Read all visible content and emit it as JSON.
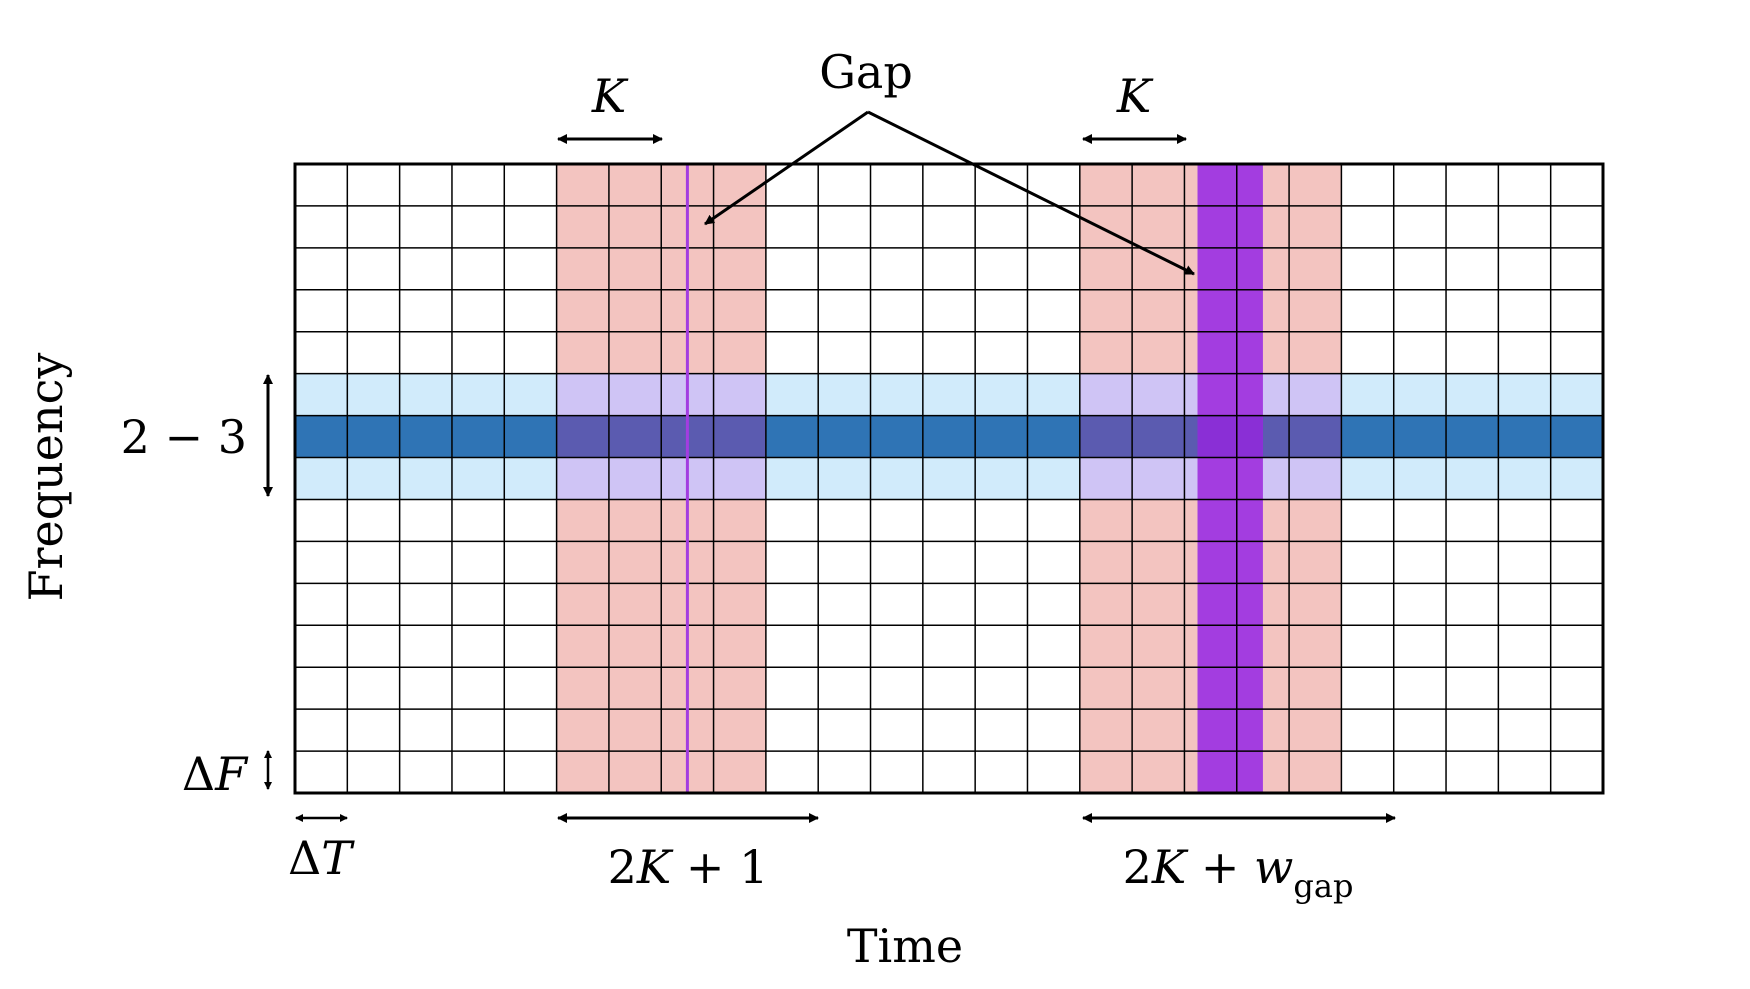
{
  "labels": {
    "gap": "Gap",
    "k_left": "K",
    "k_right": "K",
    "frequency_axis": "Frequency",
    "time_axis": "Time",
    "band_width": "2 − 3",
    "delta_f_symbol": "Δ",
    "delta_f_var": "F",
    "delta_t_symbol": "Δ",
    "delta_t_var": "T",
    "window_left_prefix": "2",
    "window_left_var": "K",
    "window_left_suffix": " + 1",
    "window_right_prefix": "2",
    "window_right_var": "K",
    "window_right_plus": " + ",
    "window_right_w": "w",
    "window_right_sub": "gap"
  },
  "grid": {
    "time_bins": 25,
    "frequency_bins": 15,
    "highlighted_rows": [
      5,
      6,
      7
    ],
    "center_row": 6,
    "window_left_cols": [
      5,
      9
    ],
    "gap_left_col": 7.5,
    "window_right_cols": [
      15,
      20
    ],
    "gap_right_cols": [
      17.25,
      18.5
    ]
  },
  "colors": {
    "window": "#f3c4c0",
    "band_light": "#d1ebfb",
    "band_dark": "#2f74b5",
    "overlap_light": "#cfc4f5",
    "overlap_dark": "#5b5bb0",
    "gap": "#a33de0",
    "gap_dark": "#8a2fd6",
    "gap_line": "#a33de0",
    "grid_line": "#000000"
  }
}
